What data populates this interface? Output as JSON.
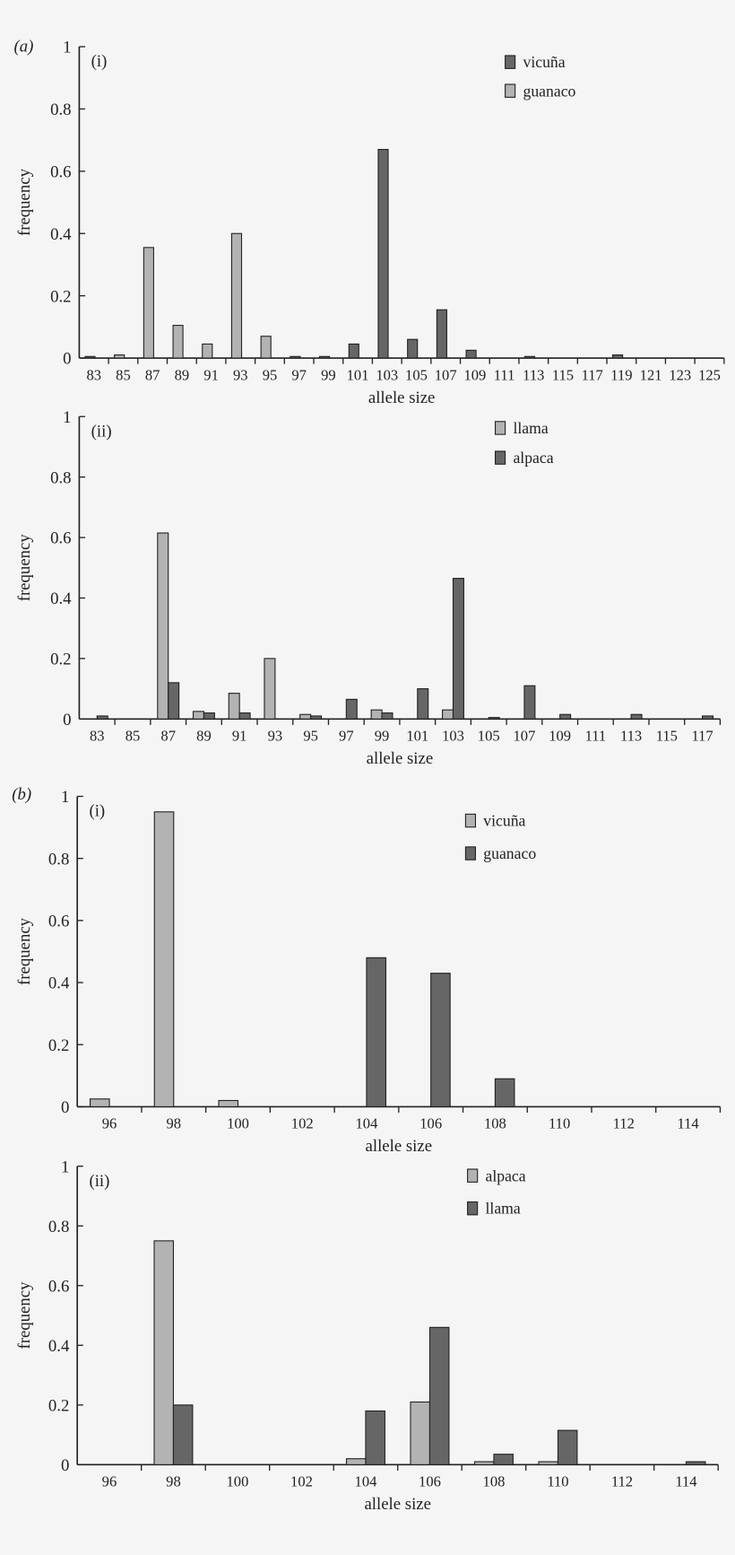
{
  "colors": {
    "light": "#b3b3b3",
    "dark": "#666666",
    "outline": "#222222",
    "background": "#f5f5f5"
  },
  "panel_labels": {
    "a": "(a)",
    "b": "(b)"
  },
  "chart_data": [
    {
      "type": "bar",
      "panel": "(a)",
      "sublabel": "(i)",
      "xlabel": "allele size",
      "ylabel": "frequency",
      "ylim": [
        0,
        1
      ],
      "yticks": [
        "0",
        "0.2",
        "0.4",
        "0.6",
        "0.8",
        "1"
      ],
      "grid": false,
      "legend": "top-right",
      "categories": [
        "83",
        "85",
        "87",
        "89",
        "91",
        "93",
        "95",
        "97",
        "99",
        "101",
        "103",
        "105",
        "107",
        "109",
        "111",
        "113",
        "115",
        "117",
        "119",
        "121",
        "123",
        "125"
      ],
      "series": [
        {
          "name": "vicuña",
          "color": "dark",
          "values": [
            0.005,
            0,
            0,
            0,
            0,
            0,
            0,
            0.005,
            0.005,
            0.045,
            0.67,
            0.06,
            0.155,
            0.025,
            0,
            0.005,
            0,
            0,
            0.01,
            0,
            0,
            0
          ]
        },
        {
          "name": "guanaco",
          "color": "light",
          "values": [
            0,
            0.01,
            0.355,
            0.105,
            0.045,
            0.4,
            0.07,
            0,
            0,
            0,
            0,
            0,
            0,
            0,
            0,
            0,
            0,
            0,
            0,
            0,
            0,
            0
          ]
        }
      ]
    },
    {
      "type": "bar",
      "sublabel": "(ii)",
      "xlabel": "allele size",
      "ylabel": "frequency",
      "ylim": [
        0,
        1
      ],
      "yticks": [
        "0",
        "0.2",
        "0.4",
        "0.6",
        "0.8",
        "1"
      ],
      "grid": false,
      "legend": "top-right",
      "categories": [
        "83",
        "85",
        "87",
        "89",
        "91",
        "93",
        "95",
        "97",
        "99",
        "101",
        "103",
        "105",
        "107",
        "109",
        "111",
        "113",
        "115",
        "117"
      ],
      "series": [
        {
          "name": "llama",
          "color": "light",
          "values": [
            0,
            0,
            0.615,
            0.025,
            0.085,
            0.2,
            0.015,
            0,
            0.03,
            0,
            0.03,
            0,
            0,
            0,
            0,
            0,
            0,
            0
          ]
        },
        {
          "name": "alpaca",
          "color": "dark",
          "values": [
            0.01,
            0,
            0.12,
            0.02,
            0.02,
            0,
            0.01,
            0.065,
            0.02,
            0.1,
            0.465,
            0.005,
            0.11,
            0.015,
            0,
            0.015,
            0,
            0.01
          ]
        }
      ]
    },
    {
      "type": "bar",
      "panel": "(b)",
      "sublabel": "(i)",
      "xlabel": "allele size",
      "ylabel": "frequency",
      "ylim": [
        0,
        1
      ],
      "yticks": [
        "0",
        "0.2",
        "0.4",
        "0.6",
        "0.8",
        "1"
      ],
      "grid": false,
      "legend": "top-right",
      "categories": [
        "96",
        "98",
        "100",
        "102",
        "104",
        "106",
        "108",
        "110",
        "112",
        "114"
      ],
      "series": [
        {
          "name": "vicuña",
          "color": "light",
          "values": [
            0.025,
            0.95,
            0.02,
            0,
            0,
            0,
            0,
            0,
            0,
            0
          ]
        },
        {
          "name": "guanaco",
          "color": "dark",
          "values": [
            0,
            0,
            0,
            0,
            0.48,
            0.43,
            0.09,
            0,
            0,
            0
          ]
        }
      ]
    },
    {
      "type": "bar",
      "sublabel": "(ii)",
      "xlabel": "allele size",
      "ylabel": "frequency",
      "ylim": [
        0,
        1
      ],
      "yticks": [
        "0",
        "0.2",
        "0.4",
        "0.6",
        "0.8",
        "1"
      ],
      "grid": false,
      "legend": "top-right",
      "categories": [
        "96",
        "98",
        "100",
        "102",
        "104",
        "106",
        "108",
        "110",
        "112",
        "114"
      ],
      "series": [
        {
          "name": "alpaca",
          "color": "light",
          "values": [
            0,
            0.75,
            0,
            0,
            0.02,
            0.21,
            0.01,
            0.01,
            0,
            0
          ]
        },
        {
          "name": "llama",
          "color": "dark",
          "values": [
            0,
            0.2,
            0,
            0,
            0.18,
            0.46,
            0.035,
            0.115,
            0,
            0.01
          ]
        }
      ]
    }
  ]
}
